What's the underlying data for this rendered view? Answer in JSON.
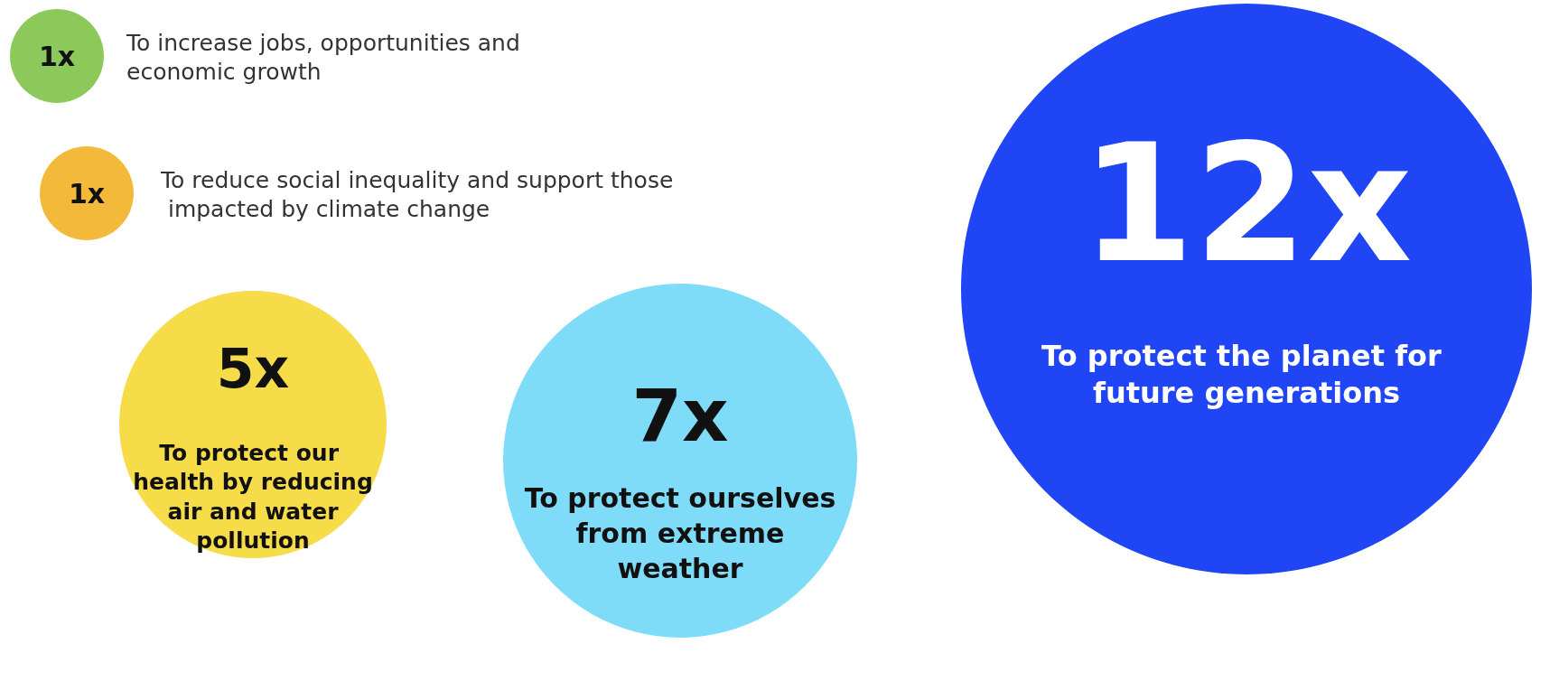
{
  "chart_data": {
    "type": "other",
    "categories": [
      "To increase jobs, opportunities and economic growth",
      "To reduce social inequality and support those impacted by climate change",
      "To protect our health by reducing air and water pollution",
      "To protect ourselves from extreme weather",
      "To protect the planet for future generations"
    ],
    "values": [
      1,
      1,
      5,
      7,
      12
    ],
    "value_labels": [
      "1x",
      "1x",
      "5x",
      "7x",
      "12x"
    ],
    "colors": [
      "#8dc95a",
      "#f3b93a",
      "#f7dc4a",
      "#7fdcf9",
      "#1f45f5"
    ]
  }
}
